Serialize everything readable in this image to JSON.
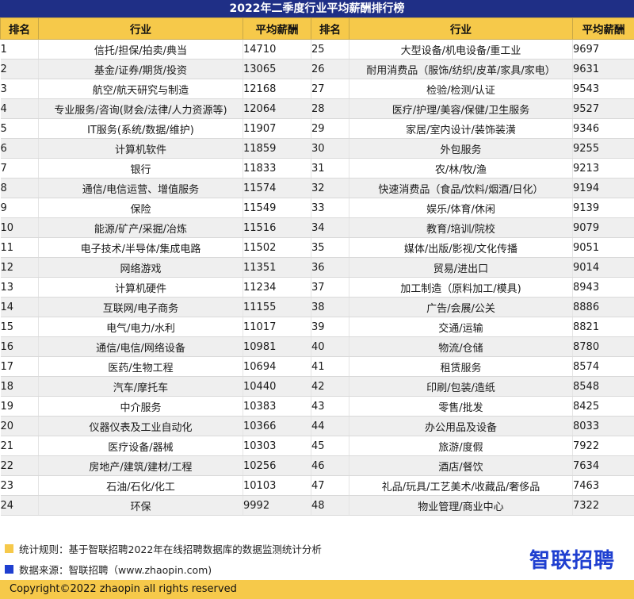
{
  "title": "2022年二季度行业平均薪酬排行榜",
  "headers": {
    "rank": "排名",
    "industry": "行业",
    "salary": "平均薪酬"
  },
  "rows": [
    {
      "l": {
        "rank": "1",
        "industry": "信托/担保/拍卖/典当",
        "salary": "14710"
      },
      "r": {
        "rank": "25",
        "industry": "大型设备/机电设备/重工业",
        "salary": "9697"
      }
    },
    {
      "l": {
        "rank": "2",
        "industry": "基金/证券/期货/投资",
        "salary": "13065"
      },
      "r": {
        "rank": "26",
        "industry": "耐用消费品（服饰/纺织/皮革/家具/家电）",
        "salary": "9631"
      }
    },
    {
      "l": {
        "rank": "3",
        "industry": "航空/航天研究与制造",
        "salary": "12168"
      },
      "r": {
        "rank": "27",
        "industry": "检验/检测/认证",
        "salary": "9543"
      }
    },
    {
      "l": {
        "rank": "4",
        "industry": "专业服务/咨询(财会/法律/人力资源等)",
        "salary": "12064"
      },
      "r": {
        "rank": "28",
        "industry": "医疗/护理/美容/保健/卫生服务",
        "salary": "9527"
      }
    },
    {
      "l": {
        "rank": "5",
        "industry": "IT服务(系统/数据/维护)",
        "salary": "11907"
      },
      "r": {
        "rank": "29",
        "industry": "家居/室内设计/装饰装潢",
        "salary": "9346"
      }
    },
    {
      "l": {
        "rank": "6",
        "industry": "计算机软件",
        "salary": "11859"
      },
      "r": {
        "rank": "30",
        "industry": "外包服务",
        "salary": "9255"
      }
    },
    {
      "l": {
        "rank": "7",
        "industry": "银行",
        "salary": "11833"
      },
      "r": {
        "rank": "31",
        "industry": "农/林/牧/渔",
        "salary": "9213"
      }
    },
    {
      "l": {
        "rank": "8",
        "industry": "通信/电信运营、增值服务",
        "salary": "11574"
      },
      "r": {
        "rank": "32",
        "industry": "快速消费品（食品/饮料/烟酒/日化）",
        "salary": "9194"
      }
    },
    {
      "l": {
        "rank": "9",
        "industry": "保险",
        "salary": "11549"
      },
      "r": {
        "rank": "33",
        "industry": "娱乐/体育/休闲",
        "salary": "9139"
      }
    },
    {
      "l": {
        "rank": "10",
        "industry": "能源/矿产/采掘/冶炼",
        "salary": "11516"
      },
      "r": {
        "rank": "34",
        "industry": "教育/培训/院校",
        "salary": "9079"
      }
    },
    {
      "l": {
        "rank": "11",
        "industry": "电子技术/半导体/集成电路",
        "salary": "11502"
      },
      "r": {
        "rank": "35",
        "industry": "媒体/出版/影视/文化传播",
        "salary": "9051"
      }
    },
    {
      "l": {
        "rank": "12",
        "industry": "网络游戏",
        "salary": "11351"
      },
      "r": {
        "rank": "36",
        "industry": "贸易/进出口",
        "salary": "9014"
      }
    },
    {
      "l": {
        "rank": "13",
        "industry": "计算机硬件",
        "salary": "11234"
      },
      "r": {
        "rank": "37",
        "industry": "加工制造（原料加工/模具)",
        "salary": "8943"
      }
    },
    {
      "l": {
        "rank": "14",
        "industry": "互联网/电子商务",
        "salary": "11155"
      },
      "r": {
        "rank": "38",
        "industry": "广告/会展/公关",
        "salary": "8886"
      }
    },
    {
      "l": {
        "rank": "15",
        "industry": "电气/电力/水利",
        "salary": "11017"
      },
      "r": {
        "rank": "39",
        "industry": "交通/运输",
        "salary": "8821"
      }
    },
    {
      "l": {
        "rank": "16",
        "industry": "通信/电信/网络设备",
        "salary": "10981"
      },
      "r": {
        "rank": "40",
        "industry": "物流/仓储",
        "salary": "8780"
      }
    },
    {
      "l": {
        "rank": "17",
        "industry": "医药/生物工程",
        "salary": "10694"
      },
      "r": {
        "rank": "41",
        "industry": "租赁服务",
        "salary": "8574"
      }
    },
    {
      "l": {
        "rank": "18",
        "industry": "汽车/摩托车",
        "salary": "10440"
      },
      "r": {
        "rank": "42",
        "industry": "印刷/包装/造纸",
        "salary": "8548"
      }
    },
    {
      "l": {
        "rank": "19",
        "industry": "中介服务",
        "salary": "10383"
      },
      "r": {
        "rank": "43",
        "industry": "零售/批发",
        "salary": "8425"
      }
    },
    {
      "l": {
        "rank": "20",
        "industry": "仪器仪表及工业自动化",
        "salary": "10366"
      },
      "r": {
        "rank": "44",
        "industry": "办公用品及设备",
        "salary": "8033"
      }
    },
    {
      "l": {
        "rank": "21",
        "industry": "医疗设备/器械",
        "salary": "10303"
      },
      "r": {
        "rank": "45",
        "industry": "旅游/度假",
        "salary": "7922"
      }
    },
    {
      "l": {
        "rank": "22",
        "industry": "房地产/建筑/建材/工程",
        "salary": "10256"
      },
      "r": {
        "rank": "46",
        "industry": "酒店/餐饮",
        "salary": "7634"
      }
    },
    {
      "l": {
        "rank": "23",
        "industry": "石油/石化/化工",
        "salary": "10103"
      },
      "r": {
        "rank": "47",
        "industry": "礼品/玩具/工艺美术/收藏品/奢侈品",
        "salary": "7463"
      }
    },
    {
      "l": {
        "rank": "24",
        "industry": "环保",
        "salary": "9992"
      },
      "r": {
        "rank": "48",
        "industry": "物业管理/商业中心",
        "salary": "7322"
      }
    }
  ],
  "notes": {
    "rule": "统计规则：基于智联招聘2022年在线招聘数据库的数据监测统计分析",
    "source": "数据来源：智联招聘（www.zhaopin.com)"
  },
  "logo": "智联招聘",
  "copyright": "Copyright©2022 zhaopin all rights reserved",
  "colors": {
    "title_bg": "#1f2f86",
    "header_bg": "#f6c94a",
    "accent_blue": "#1f3fd0"
  }
}
